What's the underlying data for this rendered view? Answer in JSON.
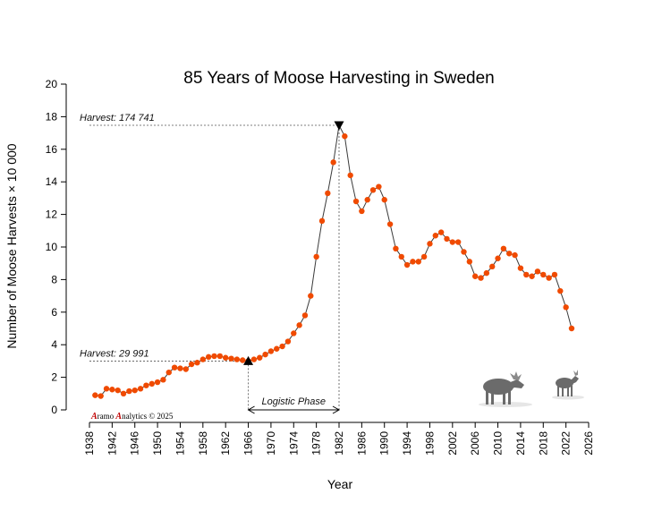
{
  "chart_data": {
    "type": "line",
    "title": "85 Years of Moose Harvesting in Sweden",
    "xlabel": "Year",
    "ylabel": "Number of Moose Harvests × 10 000",
    "xlim": [
      1938,
      2026
    ],
    "ylim": [
      0,
      20
    ],
    "x_ticks": [
      1938,
      1942,
      1946,
      1950,
      1954,
      1958,
      1962,
      1966,
      1970,
      1974,
      1978,
      1982,
      1986,
      1990,
      1994,
      1998,
      2002,
      2006,
      2010,
      2014,
      2018,
      2022,
      2026
    ],
    "y_ticks": [
      0,
      2,
      4,
      6,
      8,
      10,
      12,
      14,
      16,
      18,
      20
    ],
    "grid": false,
    "series": [
      {
        "color": "#f04a00",
        "x": [
          1939,
          1940,
          1941,
          1942,
          1943,
          1944,
          1945,
          1946,
          1947,
          1948,
          1949,
          1950,
          1951,
          1952,
          1953,
          1954,
          1955,
          1956,
          1957,
          1958,
          1959,
          1960,
          1961,
          1962,
          1963,
          1964,
          1965,
          1966,
          1967,
          1968,
          1969,
          1970,
          1971,
          1972,
          1973,
          1974,
          1975,
          1976,
          1977,
          1978,
          1979,
          1980,
          1981,
          1982,
          1983,
          1984,
          1985,
          1986,
          1987,
          1988,
          1989,
          1990,
          1991,
          1992,
          1993,
          1994,
          1995,
          1996,
          1997,
          1998,
          1999,
          2000,
          2001,
          2002,
          2003,
          2004,
          2005,
          2006,
          2007,
          2008,
          2009,
          2010,
          2011,
          2012,
          2013,
          2014,
          2015,
          2016,
          2017,
          2018,
          2019,
          2020,
          2021,
          2022,
          2023
        ],
        "y": [
          0.9,
          0.85,
          1.3,
          1.25,
          1.2,
          1.0,
          1.15,
          1.2,
          1.3,
          1.5,
          1.6,
          1.7,
          1.85,
          2.3,
          2.6,
          2.55,
          2.5,
          2.8,
          2.9,
          3.1,
          3.25,
          3.3,
          3.3,
          3.2,
          3.15,
          3.1,
          3.05,
          3.0,
          3.1,
          3.2,
          3.4,
          3.6,
          3.75,
          3.9,
          4.2,
          4.7,
          5.2,
          5.8,
          7.0,
          9.4,
          11.6,
          13.3,
          15.2,
          17.47,
          16.8,
          14.4,
          12.8,
          12.2,
          12.9,
          13.5,
          13.7,
          12.9,
          11.4,
          9.9,
          9.4,
          8.9,
          9.1,
          9.1,
          9.4,
          10.2,
          10.7,
          10.9,
          10.5,
          10.3,
          10.3,
          9.7,
          9.1,
          8.2,
          8.1,
          8.4,
          8.8,
          9.3,
          9.9,
          9.6,
          9.5,
          8.7,
          8.3,
          8.2,
          8.5,
          8.3,
          8.1,
          8.3,
          7.3,
          6.3,
          5.0
        ]
      }
    ],
    "markers": [
      {
        "x": 1966,
        "y": 2.9991,
        "symbol": "triangle-up"
      },
      {
        "x": 1982,
        "y": 17.4741,
        "symbol": "triangle-down"
      }
    ],
    "annotations": [
      {
        "text": "Harvest: 174 741"
      },
      {
        "text": "Harvest: 29 991"
      },
      {
        "text": "Logistic Phase",
        "x_from": 1966,
        "x_to": 1982
      }
    ]
  },
  "credit": {
    "a1": "A",
    "t1": "ramo ",
    "a2": "A",
    "t2": "nalytics © 2025"
  },
  "colors": {
    "series": "#f04a00",
    "line": "#3a3a3a",
    "guide": "#555555"
  },
  "decoration": {
    "icon": "moose-icon"
  }
}
